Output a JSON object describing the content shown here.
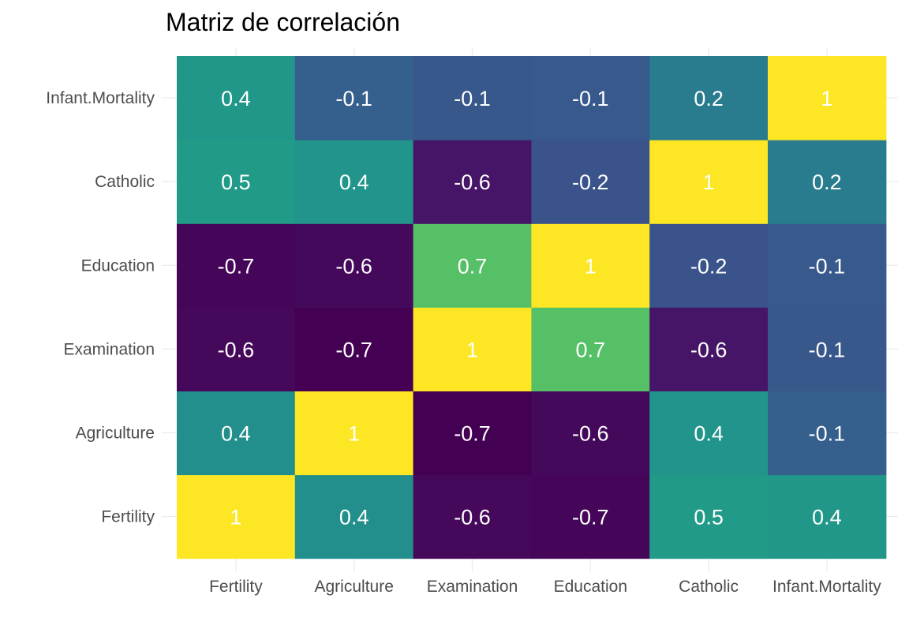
{
  "chart_data": {
    "type": "heatmap",
    "title": "Matriz de correlación",
    "xlabel": "",
    "ylabel": "",
    "x_categories": [
      "Fertility",
      "Agriculture",
      "Examination",
      "Education",
      "Catholic",
      "Infant.Mortality"
    ],
    "y_categories": [
      "Fertility",
      "Agriculture",
      "Examination",
      "Education",
      "Catholic",
      "Infant.Mortality"
    ],
    "y_order": "bottom-to-top",
    "values": [
      [
        1,
        0.35,
        -0.65,
        -0.66,
        0.46,
        0.42
      ],
      [
        0.35,
        1,
        -0.69,
        -0.64,
        0.4,
        -0.06
      ],
      [
        -0.65,
        -0.69,
        1,
        0.7,
        -0.57,
        -0.11
      ],
      [
        -0.66,
        -0.64,
        0.7,
        1,
        -0.15,
        -0.1
      ],
      [
        0.46,
        0.4,
        -0.57,
        -0.15,
        1,
        0.18
      ],
      [
        0.42,
        -0.06,
        -0.11,
        -0.1,
        0.18,
        1
      ]
    ],
    "labels": [
      [
        "1",
        "0.4",
        "-0.6",
        "-0.7",
        "0.5",
        "0.4"
      ],
      [
        "0.4",
        "1",
        "-0.7",
        "-0.6",
        "0.4",
        "-0.1"
      ],
      [
        "-0.6",
        "-0.7",
        "1",
        "0.7",
        "-0.6",
        "-0.1"
      ],
      [
        "-0.7",
        "-0.6",
        "0.7",
        "1",
        "-0.2",
        "-0.1"
      ],
      [
        "0.5",
        "0.4",
        "-0.6",
        "-0.2",
        "1",
        "0.2"
      ],
      [
        "0.4",
        "-0.1",
        "-0.1",
        "-0.1",
        "0.2",
        "1"
      ]
    ],
    "color_scale": "viridis",
    "color_range": [
      -0.69,
      1
    ],
    "legend": "none",
    "grid": true,
    "label_color": "#ffffff"
  }
}
